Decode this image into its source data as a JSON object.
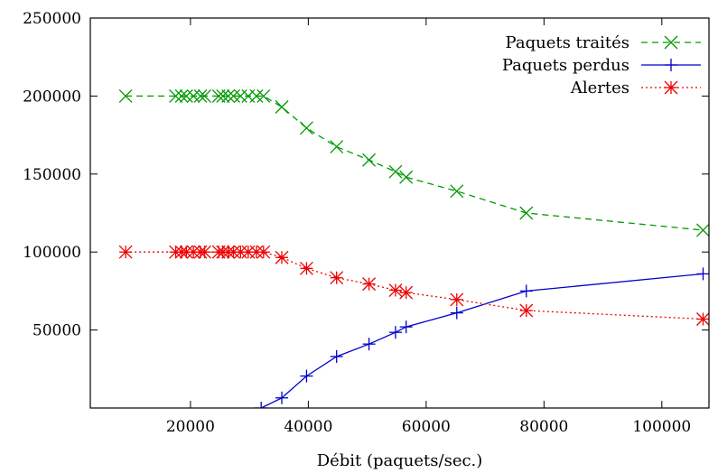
{
  "chart_data": {
    "type": "line",
    "title": "",
    "xlabel": "Débit (paquets/sec.)",
    "ylabel": "",
    "xlim": [
      3000,
      108000
    ],
    "ylim": [
      0,
      250000
    ],
    "x_ticks": [
      20000,
      40000,
      60000,
      80000,
      100000
    ],
    "x_tick_labels": [
      "20000",
      "40000",
      "60000",
      "80000",
      "100000"
    ],
    "y_ticks": [
      50000,
      100000,
      150000,
      200000,
      250000
    ],
    "y_tick_labels": [
      "50000",
      "100000",
      "150000",
      "200000",
      "250000"
    ],
    "grid": false,
    "legend_position": "top-right",
    "series": [
      {
        "name": "Paquets traités",
        "color": "#009900",
        "line_style": "dashed",
        "marker": "x",
        "x": [
          9000,
          17500,
          18500,
          19300,
          20500,
          21700,
          22400,
          24800,
          25500,
          26400,
          27300,
          28500,
          29800,
          31200,
          32400,
          35500,
          39700,
          44800,
          50300,
          54800,
          56600,
          65200,
          77000,
          107000
        ],
        "y": [
          200000,
          200000,
          200000,
          200000,
          200000,
          200000,
          200000,
          200000,
          200000,
          200000,
          200000,
          200000,
          200000,
          200000,
          200000,
          193000,
          179500,
          167500,
          159000,
          151500,
          148000,
          139000,
          125000,
          114000
        ]
      },
      {
        "name": "Paquets perdus",
        "color": "#0000cc",
        "line_style": "solid",
        "marker": "+",
        "x": [
          32000,
          35500,
          39700,
          44800,
          50300,
          54800,
          56600,
          65200,
          77000,
          107000
        ],
        "y": [
          0,
          6500,
          20500,
          33000,
          41000,
          48500,
          52000,
          61000,
          75000,
          86000
        ]
      },
      {
        "name": "Alertes",
        "color": "#ee0000",
        "line_style": "dotted",
        "marker": "*",
        "x": [
          9000,
          17500,
          18500,
          19300,
          20500,
          21700,
          22400,
          24800,
          25500,
          26400,
          27300,
          28500,
          29800,
          31200,
          32400,
          35500,
          39700,
          44800,
          50300,
          54800,
          56600,
          65200,
          77000,
          107000
        ],
        "y": [
          100000,
          100000,
          100000,
          100000,
          100000,
          100000,
          100000,
          100000,
          100000,
          100000,
          100000,
          100000,
          100000,
          100000,
          100000,
          96500,
          89500,
          83500,
          79500,
          75500,
          74000,
          69500,
          62500,
          57000
        ]
      }
    ]
  }
}
